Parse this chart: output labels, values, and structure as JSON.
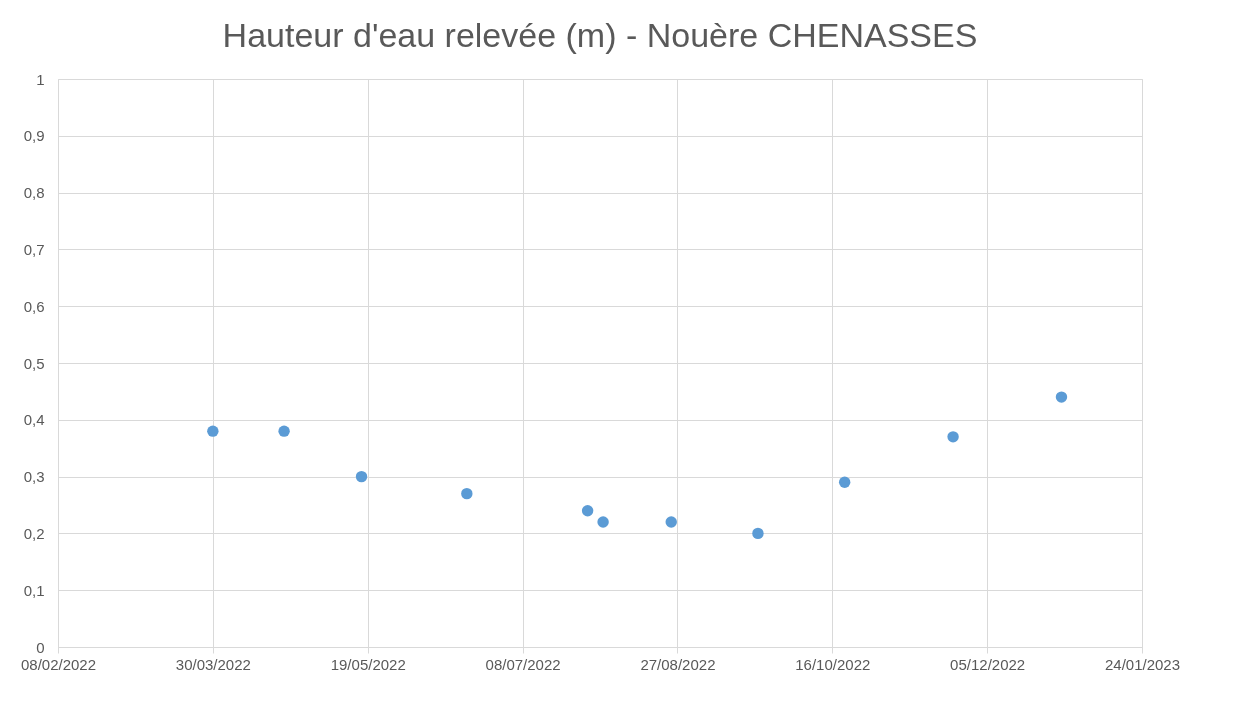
{
  "chart_data": {
    "type": "scatter",
    "title": "Hauteur d'eau relevée (m) - Nouère CHENASSES",
    "x": [
      "2022-03-30",
      "2022-04-22",
      "2022-05-17",
      "2022-06-20",
      "2022-07-29",
      "2022-08-03",
      "2022-08-25",
      "2022-09-22",
      "2022-10-20",
      "2022-11-24",
      "2022-12-29"
    ],
    "series": [
      {
        "color": "#5b9bd5",
        "values": [
          0.38,
          0.38,
          0.3,
          0.27,
          0.24,
          0.22,
          0.22,
          0.2,
          0.29,
          0.37,
          0.44
        ]
      }
    ],
    "xlim": [
      "2022-02-08",
      "2023-01-24"
    ],
    "xticks": [
      {
        "value": "2022-02-08",
        "label": "08/02/2022"
      },
      {
        "value": "2022-03-30",
        "label": "30/03/2022"
      },
      {
        "value": "2022-05-19",
        "label": "19/05/2022"
      },
      {
        "value": "2022-07-08",
        "label": "08/07/2022"
      },
      {
        "value": "2022-08-27",
        "label": "27/08/2022"
      },
      {
        "value": "2022-10-16",
        "label": "16/10/2022"
      },
      {
        "value": "2022-12-05",
        "label": "05/12/2022"
      },
      {
        "value": "2023-01-24",
        "label": "24/01/2023"
      }
    ],
    "ylim": [
      0,
      1
    ],
    "yticks": [
      {
        "value": 0,
        "label": "0"
      },
      {
        "value": 0.1,
        "label": "0,1"
      },
      {
        "value": 0.2,
        "label": "0,2"
      },
      {
        "value": 0.3,
        "label": "0,3"
      },
      {
        "value": 0.4,
        "label": "0,4"
      },
      {
        "value": 0.5,
        "label": "0,5"
      },
      {
        "value": 0.6,
        "label": "0,6"
      },
      {
        "value": 0.7,
        "label": "0,7"
      },
      {
        "value": 0.8,
        "label": "0,8"
      },
      {
        "value": 0.9,
        "label": "0,9"
      },
      {
        "value": 1,
        "label": "1"
      }
    ],
    "grid": true,
    "marker": "circle",
    "legend": false
  }
}
